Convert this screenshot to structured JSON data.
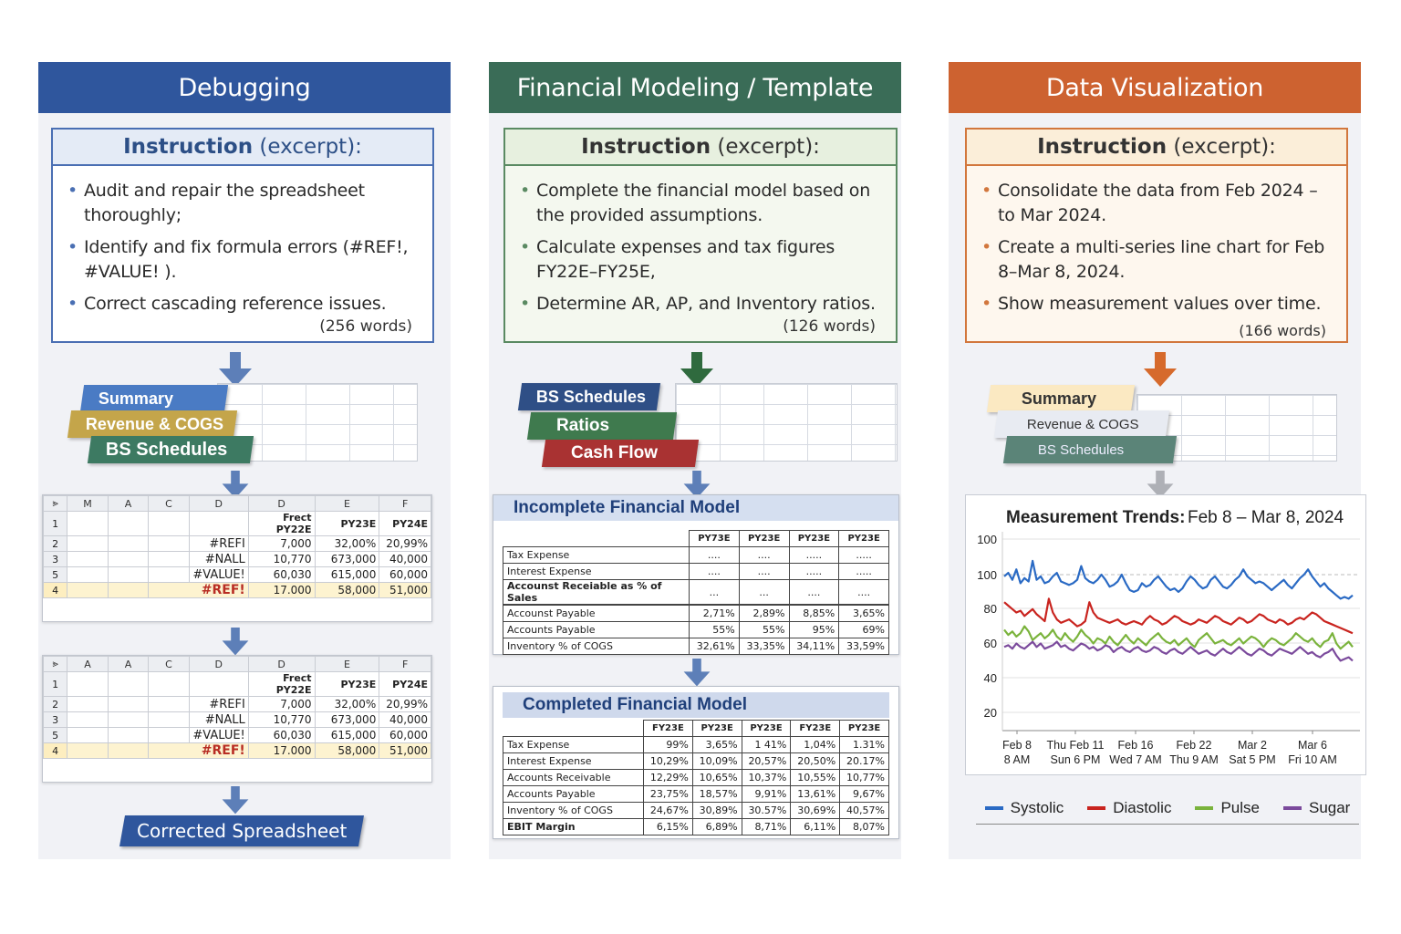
{
  "columns": {
    "debugging": {
      "title": "Debugging",
      "instruction_label": "Instruction",
      "instruction_suffix": "(excerpt):",
      "bullets": [
        "Audit and repair the spreadsheet thoroughly;",
        "Identify and fix formula errors (#REF!, #VALUE! ).",
        "Correct cascading reference issues."
      ],
      "word_count": "(256 words)",
      "tabs": [
        "Summary",
        "Revenue & COGS",
        "BS Schedules"
      ],
      "sheet_cols": [
        "⪢",
        "M",
        "A",
        "C",
        "D",
        "D",
        "E",
        "F"
      ],
      "sheet_rows": [
        {
          "n": "1",
          "err": "",
          "v1": "Frect PY22E",
          "v2": "PY23E",
          "v3": "PY24E"
        },
        {
          "n": "2",
          "err": "#REFI",
          "v1": "7,000",
          "v2": "32,00%",
          "v3": "20,99%"
        },
        {
          "n": "3",
          "err": "#NALL",
          "v1": "10,770",
          "v2": "673,000",
          "v3": "40,000"
        },
        {
          "n": "5",
          "err": "#VALUE!",
          "v1": "60,030",
          "v2": "615,000",
          "v3": "60,000"
        },
        {
          "n": "4",
          "err": "#REF!",
          "v1": "17.000",
          "v2": "58,000",
          "v3": "51,000"
        }
      ],
      "sheet2_cols": [
        "⪢",
        "A",
        "A",
        "C",
        "D",
        "D",
        "E",
        "F"
      ],
      "sheet2_rows": [
        {
          "n": "1",
          "err": "",
          "v1": "Frect PY22E",
          "v2": "PY23E",
          "v3": "PY24E"
        },
        {
          "n": "2",
          "err": "#REFI",
          "v1": "7,000",
          "v2": "32,00%",
          "v3": "20,99%"
        },
        {
          "n": "3",
          "err": "#NALL",
          "v1": "10,770",
          "v2": "673,000",
          "v3": "40,000"
        },
        {
          "n": "5",
          "err": "#VALUE!",
          "v1": "60,030",
          "v2": "615,000",
          "v3": "60,000"
        },
        {
          "n": "4",
          "err": "#REF!",
          "v1": "17.000",
          "v2": "58,000",
          "v3": "51,000"
        }
      ],
      "corrected_label": "Corrected Spreadsheet"
    },
    "financial": {
      "title": "Financial Modeling / Template",
      "instruction_label": "Instruction",
      "instruction_suffix": "(excerpt):",
      "bullets": [
        "Complete the financial model based on the provided assumptions.",
        "Calculate expenses and tax figures FY22E–FY25E,",
        "Determine AR, AP, and Inventory ratios."
      ],
      "word_count": "(126 words)",
      "tabs": [
        "BS Schedules",
        "Ratios",
        "Cash Flow"
      ],
      "incomplete": {
        "title": "Incomplete Financial Model",
        "headers": [
          "PY73E",
          "PY23E",
          "PY23E",
          "PY23E"
        ],
        "rows": [
          {
            "label": "Tax Expense",
            "v": [
              "....",
              "....",
              ".....",
              "....."
            ]
          },
          {
            "label": "Interest Expense",
            "v": [
              "....",
              "....",
              ".....",
              "....."
            ]
          },
          {
            "label": "Accounst Receiable as % of Sales",
            "v": [
              "...",
              "...",
              "....",
              "...."
            ]
          },
          {
            "label": "Accounst Payable",
            "v": [
              "2,71%",
              "2,89%",
              "8,85%",
              "3,65%"
            ]
          },
          {
            "label": "Accounts Payable",
            "v": [
              "55%",
              "55%",
              "95%",
              "69%"
            ]
          },
          {
            "label": "Inventory % of COGS",
            "v": [
              "32,61%",
              "33,35%",
              "34,11%",
              "33,59%"
            ]
          }
        ]
      },
      "completed": {
        "title": "Completed Financial Model",
        "headers": [
          "FY23E",
          "PY23E",
          "PY23E",
          "FY23E",
          "PY23E"
        ],
        "rows": [
          {
            "label": "Tax Expense",
            "v": [
              "99%",
              "3,65%",
              "1 41%",
              "1,04%",
              "1.31%"
            ]
          },
          {
            "label": "Interest Expense",
            "v": [
              "10,29%",
              "10,09%",
              "20,57%",
              "20,50%",
              "20.17%"
            ]
          },
          {
            "label": "Accounts Receivable",
            "v": [
              "12,29%",
              "10,65%",
              "10,37%",
              "10,55%",
              "10,77%"
            ]
          },
          {
            "label": "Accounts Payable",
            "v": [
              "23,75%",
              "18,57%",
              "9,91%",
              "13,61%",
              "9,67%"
            ]
          },
          {
            "label": "Inventory % of COGS",
            "v": [
              "24,67%",
              "30,89%",
              "30.57%",
              "30,69%",
              "40,57%"
            ]
          },
          {
            "label": "EBIT Margin",
            "v": [
              "6,15%",
              "6,89%",
              "8,71%",
              "6,11%",
              "8,07%"
            ]
          }
        ]
      }
    },
    "dataviz": {
      "title": "Data Visualization",
      "instruction_label": "Instruction",
      "instruction_suffix": "(excerpt):",
      "bullets": [
        "Consolidate the data from Feb 2024 –to Mar 2024.",
        "Create a multi-series line chart for Feb 8–Mar 8, 2024.",
        "Show measurement values over time."
      ],
      "word_count": "(166 words)",
      "tabs": [
        "Summary",
        "Revenue & COGS",
        "BS Schedules"
      ]
    }
  },
  "chart_data": {
    "type": "line",
    "title": "Measurement Trends:",
    "subtitle": "Feb 8 – Mar 8, 2024",
    "y_ticks": [
      "100",
      "100",
      "80",
      "60",
      "40",
      "20"
    ],
    "x_tick_labels": [
      [
        "Feb 8",
        "8 AM"
      ],
      [
        "Thu Feb 11",
        "Sun 6 PM"
      ],
      [
        "Feb 16",
        "Wed 7 AM"
      ],
      [
        "Feb 22",
        "Thu 9 AM"
      ],
      [
        "Mar 2",
        "Sat 5 PM"
      ],
      [
        "Mar 6",
        "Fri 10 AM"
      ]
    ],
    "ylim": [
      10,
      115
    ],
    "series": [
      {
        "name": "Systolic",
        "color": "#2a6ac4",
        "values": [
          99,
          101,
          97,
          103,
          95,
          98,
          96,
          108,
          97,
          99,
          95,
          96,
          99,
          101,
          96,
          95,
          94,
          95,
          97,
          105,
          98,
          96,
          95,
          97,
          100,
          97,
          93,
          94,
          96,
          100,
          95,
          91,
          90,
          91,
          95,
          93,
          94,
          97,
          99,
          96,
          93,
          91,
          92,
          90,
          92,
          96,
          99,
          97,
          94,
          92,
          93,
          97,
          99,
          96,
          93,
          92,
          94,
          97,
          99,
          103,
          99,
          97,
          95,
          96,
          95,
          93,
          91,
          93,
          95,
          97,
          94,
          92,
          95,
          98,
          100,
          103,
          99,
          96,
          93,
          95,
          92,
          90,
          88,
          86,
          87,
          86,
          88
        ]
      },
      {
        "name": "Diastolic",
        "color": "#c9241f",
        "values": [
          84,
          82,
          80,
          78,
          79,
          76,
          78,
          80,
          77,
          75,
          73,
          86,
          78,
          74,
          72,
          73,
          74,
          72,
          70,
          71,
          73,
          84,
          78,
          75,
          74,
          73,
          72,
          73,
          74,
          72,
          71,
          72,
          73,
          72,
          71,
          74,
          76,
          74,
          73,
          71,
          72,
          74,
          76,
          75,
          73,
          72,
          71,
          72,
          74,
          73,
          72,
          74,
          76,
          75,
          73,
          72,
          71,
          73,
          75,
          74,
          72,
          73,
          75,
          77,
          76,
          74,
          73,
          72,
          74,
          73,
          71,
          72,
          74,
          75,
          74,
          76,
          78,
          77,
          75,
          73,
          72,
          71,
          70,
          69,
          68,
          67,
          66
        ]
      },
      {
        "name": "Pulse",
        "color": "#7ab33c",
        "values": [
          68,
          65,
          67,
          64,
          66,
          70,
          67,
          62,
          64,
          66,
          63,
          65,
          68,
          64,
          62,
          66,
          63,
          61,
          64,
          68,
          65,
          63,
          60,
          63,
          62,
          60,
          64,
          61,
          59,
          62,
          65,
          62,
          60,
          63,
          61,
          59,
          62,
          64,
          66,
          63,
          61,
          60,
          62,
          59,
          61,
          63,
          60,
          58,
          62,
          64,
          66,
          63,
          60,
          61,
          62,
          60,
          59,
          61,
          63,
          60,
          62,
          64,
          63,
          61,
          58,
          61,
          63,
          62,
          60,
          59,
          61,
          63,
          66,
          64,
          62,
          61,
          63,
          60,
          58,
          61,
          62,
          66,
          60,
          57,
          59,
          61,
          58
        ]
      },
      {
        "name": "Sugar",
        "color": "#7b4a9c",
        "values": [
          58,
          59,
          57,
          60,
          58,
          57,
          59,
          61,
          58,
          60,
          57,
          58,
          59,
          61,
          58,
          59,
          57,
          56,
          58,
          60,
          59,
          57,
          58,
          56,
          57,
          59,
          58,
          55,
          57,
          58,
          56,
          55,
          57,
          58,
          56,
          55,
          56,
          58,
          57,
          55,
          54,
          56,
          57,
          55,
          54,
          56,
          58,
          56,
          54,
          55,
          56,
          54,
          53,
          55,
          57,
          55,
          54,
          56,
          58,
          56,
          54,
          53,
          55,
          57,
          56,
          54,
          53,
          55,
          57,
          56,
          55,
          54,
          56,
          58,
          56,
          54,
          55,
          53,
          52,
          54,
          55,
          57,
          53,
          50,
          51,
          52,
          50
        ]
      }
    ]
  }
}
